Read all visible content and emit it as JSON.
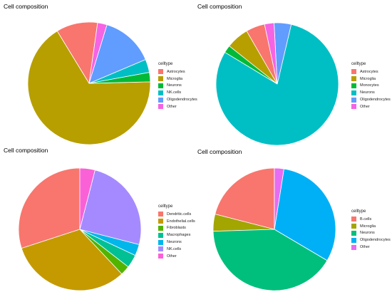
{
  "chart_data": [
    {
      "type": "pie",
      "title": "Cell composition",
      "legend_title": "celltype",
      "legend_position": "right",
      "categories": [
        "Astrocytes",
        "Microglia",
        "Neurons",
        "NK.cells",
        "Oligodendrocytes",
        "Other"
      ],
      "values": [
        11,
        67,
        2.5,
        3.5,
        14,
        2.5
      ],
      "colors": [
        "#F8766D",
        "#B79F00",
        "#00BA38",
        "#00BFC4",
        "#619CFF",
        "#F564E3"
      ]
    },
    {
      "type": "pie",
      "title": "Cell composition",
      "legend_title": "celltype",
      "legend_position": "right",
      "categories": [
        "Astrocytes",
        "Microglia",
        "Monocytes",
        "Neurons",
        "Oligodendrocytes",
        "Other"
      ],
      "values": [
        5,
        6,
        2,
        80,
        4.5,
        2.5
      ],
      "colors": [
        "#F8766D",
        "#B79F00",
        "#00BA38",
        "#00BFC4",
        "#619CFF",
        "#F564E3"
      ]
    },
    {
      "type": "pie",
      "title": "Cell composition",
      "legend_title": "celltype",
      "legend_position": "right",
      "categories": [
        "Dendritic.cells",
        "Endothelial.cells",
        "Fibroblasts",
        "Macrophages",
        "Neurons",
        "NK.cells",
        "Other"
      ],
      "values": [
        30,
        32,
        2.5,
        3.5,
        3,
        25,
        4
      ],
      "colors": [
        "#F8766D",
        "#C49A00",
        "#53B400",
        "#00C094",
        "#00B6EB",
        "#A58AFF",
        "#FB61D7"
      ]
    },
    {
      "type": "pie",
      "title": "Cell composition",
      "legend_title": "celltype",
      "legend_position": "right",
      "categories": [
        "B.cells",
        "Microglia",
        "Neurons",
        "Oligodendrocytes",
        "Other"
      ],
      "values": [
        21,
        4.5,
        41,
        31,
        2.5
      ],
      "colors": [
        "#F8766D",
        "#A3A500",
        "#00BF7D",
        "#00B0F6",
        "#E76BF3"
      ]
    }
  ]
}
